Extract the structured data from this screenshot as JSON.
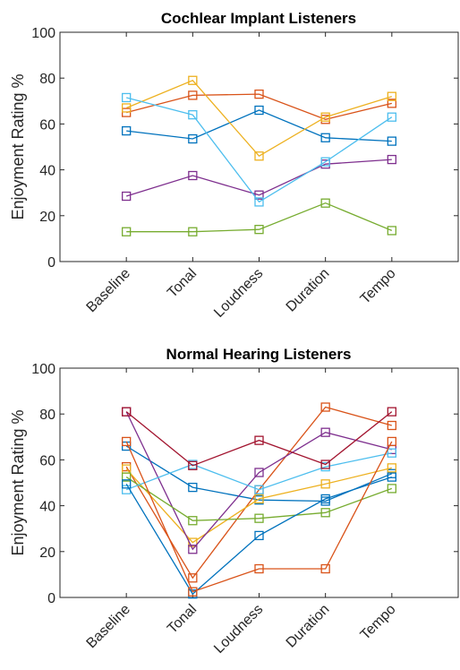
{
  "chart_data": [
    {
      "type": "line",
      "title": "Cochlear Implant Listeners",
      "ylabel": "Enjoyment Rating %",
      "xlabel": "",
      "ylim": [
        0,
        100
      ],
      "yticks": [
        "0",
        "20",
        "40",
        "60",
        "80",
        "100"
      ],
      "categories": [
        "Baseline",
        "Tonal",
        "Loudness",
        "Duration",
        "Tempo"
      ],
      "grid": false,
      "marker": "square",
      "series": [
        {
          "color": "#0072BD",
          "values": [
            57,
            53.5,
            66,
            54,
            52.5
          ]
        },
        {
          "color": "#D95319",
          "values": [
            65,
            72.5,
            73,
            62,
            69
          ]
        },
        {
          "color": "#EDB120",
          "values": [
            67,
            79,
            46,
            63,
            72
          ]
        },
        {
          "color": "#7E2F8E",
          "values": [
            28.5,
            37.5,
            29,
            42.5,
            44.5
          ]
        },
        {
          "color": "#77AC30",
          "values": [
            13,
            13,
            14,
            25.5,
            13.5
          ]
        },
        {
          "color": "#4DBEEE",
          "values": [
            71.5,
            64,
            26,
            43.5,
            63
          ]
        }
      ]
    },
    {
      "type": "line",
      "title": "Normal Hearing Listeners",
      "ylabel": "Enjoyment Rating %",
      "xlabel": "",
      "ylim": [
        0,
        100
      ],
      "yticks": [
        "0",
        "20",
        "40",
        "60",
        "80",
        "100"
      ],
      "categories": [
        "Baseline",
        "Tonal",
        "Loudness",
        "Duration",
        "Tempo"
      ],
      "grid": false,
      "marker": "square",
      "series": [
        {
          "color": "#0072BD",
          "values": [
            66,
            48,
            42.5,
            42,
            54
          ]
        },
        {
          "color": "#D95319",
          "values": [
            57,
            8.5,
            47,
            83,
            75
          ]
        },
        {
          "color": "#EDB120",
          "values": [
            56,
            24,
            43,
            49.5,
            56.5
          ]
        },
        {
          "color": "#7E2F8E",
          "values": [
            81,
            21,
            54.5,
            72,
            64.5
          ]
        },
        {
          "color": "#77AC30",
          "values": [
            52.5,
            33.5,
            34.5,
            37,
            47.5
          ]
        },
        {
          "color": "#4DBEEE",
          "values": [
            47,
            58,
            47,
            57,
            63
          ]
        },
        {
          "color": "#A2142F",
          "values": [
            81,
            57.5,
            68.5,
            58,
            81
          ]
        },
        {
          "color": "#0072BD",
          "values": [
            49.5,
            1.5,
            27,
            43,
            52.5
          ]
        },
        {
          "color": "#D95319",
          "values": [
            68,
            2.5,
            12.5,
            12.5,
            68
          ]
        }
      ]
    }
  ]
}
